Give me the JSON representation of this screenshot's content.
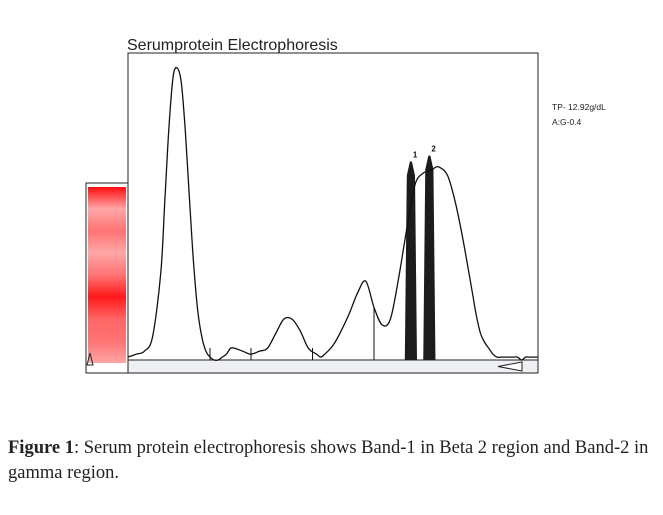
{
  "chart_data": {
    "type": "line",
    "title": "Serumprotein Electrophoresis",
    "annotations": [
      "TP- 12.92g/dL",
      "A:G-0.4"
    ],
    "peak_labels": [
      "1",
      "2"
    ],
    "x_range": [
      0,
      100
    ],
    "y_range": [
      0,
      100
    ],
    "grid": false,
    "curve": {
      "x": [
        0,
        2,
        4,
        6,
        8,
        9,
        10,
        11,
        12,
        13,
        14,
        15,
        16,
        17,
        18,
        19,
        20,
        21,
        22,
        23,
        24,
        25,
        26,
        28,
        30,
        32,
        34,
        36,
        38,
        40,
        42,
        44,
        46,
        47,
        48,
        50,
        52,
        54,
        56,
        58,
        60,
        62,
        64,
        66,
        68,
        70,
        72,
        74,
        75,
        76,
        78,
        80,
        82,
        84,
        85,
        86,
        87,
        88,
        89,
        90,
        91,
        92,
        93,
        94,
        95,
        96,
        97,
        98,
        100
      ],
      "y": [
        1,
        2,
        3,
        8,
        30,
        55,
        80,
        97,
        100,
        95,
        78,
        55,
        33,
        17,
        8,
        3,
        1,
        0,
        0,
        1,
        2,
        4,
        4,
        3,
        2,
        3,
        4,
        9,
        14,
        14,
        10,
        4,
        2,
        1,
        2,
        5,
        10,
        16,
        23,
        27,
        18,
        12,
        14,
        28,
        45,
        60,
        64,
        65,
        66,
        66,
        63,
        53,
        39,
        23,
        15,
        9,
        6,
        4,
        2,
        1,
        1,
        1,
        1,
        1,
        1,
        0,
        1,
        1,
        1
      ]
    },
    "fraction_boundaries_x": [
      20,
      30,
      45,
      60
    ],
    "bands": [
      {
        "label": "1",
        "center_x": 69,
        "width_x": 2,
        "peak": 68
      },
      {
        "label": "2",
        "center_x": 73.5,
        "width_x": 2,
        "peak": 70
      }
    ],
    "gel_intensities": [
      0.95,
      0.35,
      0.55,
      0.35,
      0.55,
      0.9,
      0.6,
      0.55,
      0.35
    ]
  },
  "caption": {
    "lead": "Figure 1",
    "text": ": Serum protein electrophoresis shows Band-1 in Beta 2 region and Band-2 in gamma region."
  }
}
